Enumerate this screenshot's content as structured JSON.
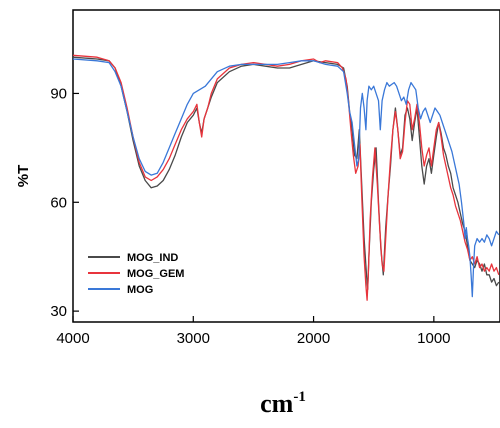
{
  "chart_data": {
    "type": "line",
    "xlabel_base": "cm",
    "xlabel_exp": "-1",
    "ylabel": "%T",
    "xlim": [
      4000,
      450
    ],
    "ylim": [
      27,
      113
    ],
    "x_ticks": [
      4000,
      3000,
      2000,
      1000
    ],
    "x_tick_labels": [
      "4000",
      "3000",
      "2000",
      "1000"
    ],
    "y_ticks": [
      30,
      60,
      90
    ],
    "y_tick_labels": [
      "30",
      "60",
      "90"
    ],
    "legend_position": "lower-left",
    "series": [
      {
        "name": "MOG_IND",
        "color": "#4a4a4a",
        "points": [
          [
            4000,
            100
          ],
          [
            3800,
            99.5
          ],
          [
            3700,
            99
          ],
          [
            3650,
            97
          ],
          [
            3600,
            92
          ],
          [
            3550,
            85
          ],
          [
            3500,
            77
          ],
          [
            3450,
            70
          ],
          [
            3400,
            66
          ],
          [
            3350,
            64
          ],
          [
            3300,
            64.5
          ],
          [
            3250,
            66
          ],
          [
            3200,
            69
          ],
          [
            3150,
            73
          ],
          [
            3100,
            78
          ],
          [
            3050,
            82
          ],
          [
            3000,
            84
          ],
          [
            2970,
            86
          ],
          [
            2950,
            82
          ],
          [
            2930,
            79
          ],
          [
            2910,
            83
          ],
          [
            2880,
            86
          ],
          [
            2850,
            89
          ],
          [
            2800,
            93
          ],
          [
            2700,
            96
          ],
          [
            2600,
            97.5
          ],
          [
            2500,
            98
          ],
          [
            2400,
            97.5
          ],
          [
            2300,
            97
          ],
          [
            2200,
            97
          ],
          [
            2100,
            98
          ],
          [
            2000,
            99
          ],
          [
            1900,
            98.5
          ],
          [
            1800,
            98
          ],
          [
            1750,
            97
          ],
          [
            1720,
            92
          ],
          [
            1700,
            85
          ],
          [
            1680,
            80
          ],
          [
            1660,
            73
          ],
          [
            1640,
            72
          ],
          [
            1620,
            80
          ],
          [
            1600,
            65
          ],
          [
            1580,
            50
          ],
          [
            1560,
            40
          ],
          [
            1550,
            36
          ],
          [
            1540,
            45
          ],
          [
            1520,
            60
          ],
          [
            1500,
            69
          ],
          [
            1480,
            75
          ],
          [
            1460,
            60
          ],
          [
            1440,
            47
          ],
          [
            1420,
            40
          ],
          [
            1400,
            53
          ],
          [
            1380,
            62
          ],
          [
            1360,
            70
          ],
          [
            1340,
            80
          ],
          [
            1320,
            86
          ],
          [
            1300,
            80
          ],
          [
            1280,
            73
          ],
          [
            1260,
            75
          ],
          [
            1240,
            84
          ],
          [
            1220,
            86
          ],
          [
            1200,
            83
          ],
          [
            1180,
            77
          ],
          [
            1160,
            82
          ],
          [
            1140,
            86
          ],
          [
            1120,
            78
          ],
          [
            1100,
            70
          ],
          [
            1080,
            65
          ],
          [
            1060,
            70
          ],
          [
            1040,
            72
          ],
          [
            1020,
            68
          ],
          [
            1000,
            73
          ],
          [
            980,
            78
          ],
          [
            960,
            82
          ],
          [
            940,
            79
          ],
          [
            920,
            75
          ],
          [
            900,
            73
          ],
          [
            880,
            70
          ],
          [
            860,
            68
          ],
          [
            840,
            64
          ],
          [
            820,
            62
          ],
          [
            800,
            60
          ],
          [
            780,
            57
          ],
          [
            760,
            54
          ],
          [
            740,
            52
          ],
          [
            720,
            48
          ],
          [
            700,
            44
          ],
          [
            680,
            43
          ],
          [
            660,
            42
          ],
          [
            640,
            44
          ],
          [
            620,
            43
          ],
          [
            600,
            41
          ],
          [
            580,
            43
          ],
          [
            560,
            40
          ],
          [
            540,
            40
          ],
          [
            520,
            38
          ],
          [
            500,
            39
          ],
          [
            480,
            37
          ],
          [
            460,
            38
          ]
        ]
      },
      {
        "name": "MOG_GEM",
        "color": "#e8343c",
        "points": [
          [
            4000,
            100.5
          ],
          [
            3800,
            100
          ],
          [
            3700,
            99
          ],
          [
            3650,
            97
          ],
          [
            3600,
            93
          ],
          [
            3550,
            86
          ],
          [
            3500,
            78
          ],
          [
            3450,
            71
          ],
          [
            3400,
            67
          ],
          [
            3350,
            66
          ],
          [
            3300,
            67
          ],
          [
            3250,
            69
          ],
          [
            3200,
            72
          ],
          [
            3150,
            76
          ],
          [
            3100,
            80
          ],
          [
            3050,
            83
          ],
          [
            3000,
            85
          ],
          [
            2970,
            87
          ],
          [
            2950,
            82
          ],
          [
            2930,
            78
          ],
          [
            2910,
            83
          ],
          [
            2880,
            86
          ],
          [
            2850,
            90
          ],
          [
            2800,
            94
          ],
          [
            2700,
            97
          ],
          [
            2600,
            98
          ],
          [
            2500,
            98.5
          ],
          [
            2400,
            98
          ],
          [
            2300,
            97.5
          ],
          [
            2200,
            98
          ],
          [
            2100,
            99
          ],
          [
            2000,
            99.5
          ],
          [
            1950,
            98.5
          ],
          [
            1900,
            99
          ],
          [
            1800,
            98.5
          ],
          [
            1760,
            97
          ],
          [
            1730,
            94
          ],
          [
            1710,
            88
          ],
          [
            1690,
            80
          ],
          [
            1670,
            73
          ],
          [
            1650,
            68
          ],
          [
            1630,
            70
          ],
          [
            1615,
            76
          ],
          [
            1600,
            62
          ],
          [
            1580,
            45
          ],
          [
            1565,
            37
          ],
          [
            1555,
            33
          ],
          [
            1545,
            40
          ],
          [
            1530,
            55
          ],
          [
            1510,
            67
          ],
          [
            1490,
            75
          ],
          [
            1470,
            65
          ],
          [
            1450,
            53
          ],
          [
            1430,
            43
          ],
          [
            1415,
            41
          ],
          [
            1400,
            50
          ],
          [
            1380,
            62
          ],
          [
            1360,
            72
          ],
          [
            1340,
            80
          ],
          [
            1320,
            85
          ],
          [
            1300,
            80
          ],
          [
            1280,
            72
          ],
          [
            1260,
            74
          ],
          [
            1240,
            82
          ],
          [
            1220,
            88
          ],
          [
            1200,
            87
          ],
          [
            1180,
            80
          ],
          [
            1160,
            83
          ],
          [
            1140,
            87
          ],
          [
            1120,
            82
          ],
          [
            1100,
            75
          ],
          [
            1080,
            70
          ],
          [
            1060,
            73
          ],
          [
            1040,
            75
          ],
          [
            1020,
            70
          ],
          [
            1000,
            75
          ],
          [
            980,
            80
          ],
          [
            960,
            82
          ],
          [
            940,
            78
          ],
          [
            920,
            73
          ],
          [
            900,
            70
          ],
          [
            880,
            67
          ],
          [
            860,
            64
          ],
          [
            840,
            62
          ],
          [
            820,
            59
          ],
          [
            800,
            57
          ],
          [
            780,
            55
          ],
          [
            760,
            52
          ],
          [
            740,
            49
          ],
          [
            720,
            47
          ],
          [
            700,
            44
          ],
          [
            680,
            45
          ],
          [
            660,
            43
          ],
          [
            640,
            45
          ],
          [
            620,
            42
          ],
          [
            600,
            43
          ],
          [
            580,
            41
          ],
          [
            560,
            42
          ],
          [
            540,
            41
          ],
          [
            520,
            43
          ],
          [
            500,
            41
          ],
          [
            480,
            42
          ],
          [
            460,
            40
          ]
        ]
      },
      {
        "name": "MOG",
        "color": "#3a78d8",
        "points": [
          [
            4000,
            99.5
          ],
          [
            3800,
            99
          ],
          [
            3700,
            98.5
          ],
          [
            3650,
            96
          ],
          [
            3600,
            92
          ],
          [
            3550,
            85
          ],
          [
            3500,
            78
          ],
          [
            3450,
            72
          ],
          [
            3400,
            68.5
          ],
          [
            3350,
            67.5
          ],
          [
            3300,
            68
          ],
          [
            3250,
            71
          ],
          [
            3200,
            75
          ],
          [
            3150,
            79
          ],
          [
            3100,
            83
          ],
          [
            3050,
            87
          ],
          [
            3000,
            90
          ],
          [
            2950,
            91
          ],
          [
            2900,
            92
          ],
          [
            2850,
            94
          ],
          [
            2800,
            96
          ],
          [
            2700,
            97.5
          ],
          [
            2600,
            98
          ],
          [
            2500,
            98
          ],
          [
            2400,
            98
          ],
          [
            2300,
            98
          ],
          [
            2200,
            98.5
          ],
          [
            2100,
            99
          ],
          [
            2000,
            99
          ],
          [
            1900,
            98
          ],
          [
            1800,
            97.5
          ],
          [
            1750,
            96
          ],
          [
            1720,
            90
          ],
          [
            1700,
            85
          ],
          [
            1680,
            82
          ],
          [
            1660,
            76
          ],
          [
            1640,
            70
          ],
          [
            1625,
            72
          ],
          [
            1610,
            86
          ],
          [
            1595,
            90
          ],
          [
            1580,
            86
          ],
          [
            1565,
            80
          ],
          [
            1555,
            88
          ],
          [
            1540,
            92
          ],
          [
            1520,
            91
          ],
          [
            1500,
            92
          ],
          [
            1480,
            90
          ],
          [
            1460,
            88
          ],
          [
            1445,
            80
          ],
          [
            1430,
            88
          ],
          [
            1410,
            91
          ],
          [
            1390,
            93
          ],
          [
            1370,
            92
          ],
          [
            1350,
            92.5
          ],
          [
            1330,
            93
          ],
          [
            1310,
            92
          ],
          [
            1290,
            90
          ],
          [
            1270,
            88
          ],
          [
            1250,
            89
          ],
          [
            1230,
            87
          ],
          [
            1210,
            91
          ],
          [
            1190,
            93
          ],
          [
            1170,
            92
          ],
          [
            1150,
            91
          ],
          [
            1130,
            86
          ],
          [
            1110,
            83
          ],
          [
            1090,
            85
          ],
          [
            1070,
            86
          ],
          [
            1050,
            84
          ],
          [
            1030,
            82
          ],
          [
            1010,
            84
          ],
          [
            990,
            86
          ],
          [
            970,
            85
          ],
          [
            950,
            84
          ],
          [
            930,
            82
          ],
          [
            910,
            80
          ],
          [
            890,
            78
          ],
          [
            870,
            76
          ],
          [
            850,
            74
          ],
          [
            830,
            71
          ],
          [
            810,
            68
          ],
          [
            790,
            65
          ],
          [
            770,
            60
          ],
          [
            750,
            54
          ],
          [
            740,
            50
          ],
          [
            730,
            53
          ],
          [
            720,
            50
          ],
          [
            710,
            48
          ],
          [
            700,
            45
          ],
          [
            690,
            40
          ],
          [
            680,
            34
          ],
          [
            670,
            42
          ],
          [
            660,
            48
          ],
          [
            640,
            50
          ],
          [
            620,
            49
          ],
          [
            600,
            50
          ],
          [
            580,
            49
          ],
          [
            560,
            51
          ],
          [
            540,
            50
          ],
          [
            520,
            48
          ],
          [
            500,
            50
          ],
          [
            480,
            52
          ],
          [
            460,
            51
          ]
        ]
      }
    ]
  }
}
